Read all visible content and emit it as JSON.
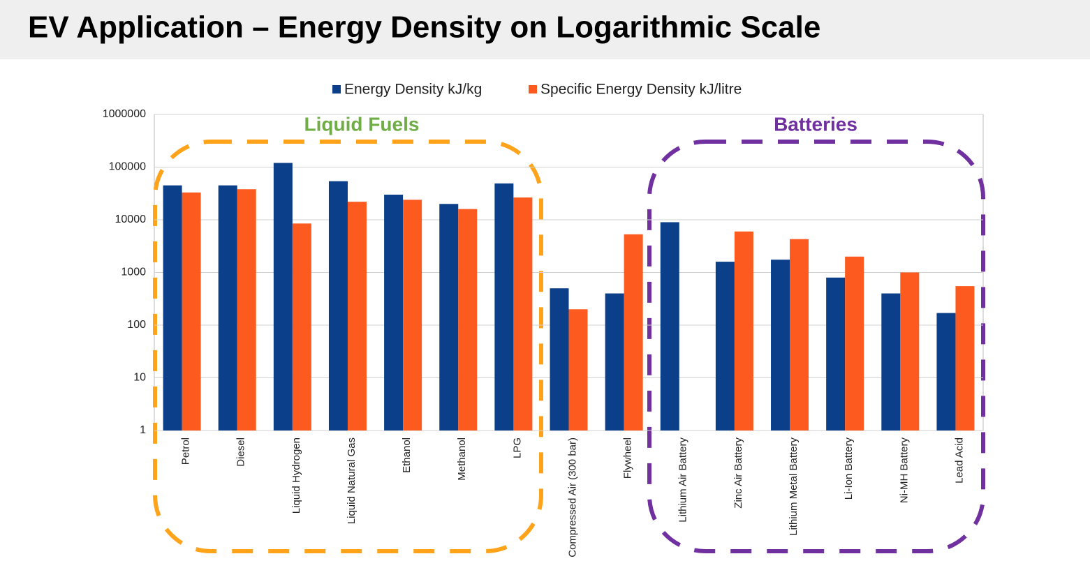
{
  "chart_data": {
    "type": "bar",
    "title": "EV Application – Energy Density on Logarithmic Scale",
    "categories": [
      "Petrol",
      "Diesel",
      "Liquid Hydrogen",
      "Liquid Natural Gas",
      "Ethanol",
      "Methanol",
      "LPG",
      "Compressed Air (300 bar)",
      "Flywheel",
      "Lithium Air Battery",
      "Zinc Air Battery",
      "Lithium Metal Battery",
      "Li-Ion Battery",
      "Ni-MH Battery",
      "Lead Acid"
    ],
    "series": [
      {
        "name": "Energy Density kJ/kg",
        "color": "#0b3f8a",
        "values": [
          45000,
          45000,
          120000,
          54000,
          30000,
          20000,
          49000,
          500,
          400,
          9000,
          1600,
          1750,
          800,
          400,
          170
        ]
      },
      {
        "name": "Specific Energy Density kJ/litre",
        "color": "#fc5a1e",
        "values": [
          33000,
          38000,
          8500,
          22000,
          24000,
          16000,
          26500,
          200,
          5300,
          null,
          6000,
          4300,
          2000,
          1000,
          550
        ]
      }
    ],
    "log_scale": true,
    "ylim": [
      1,
      1000000
    ],
    "yticks": [
      1,
      10,
      100,
      1000,
      10000,
      100000,
      1000000
    ],
    "grid": true,
    "legend": "top",
    "annotations": [
      {
        "text": "Liquid Fuels",
        "color": "#70ad47"
      },
      {
        "text": "Batteries",
        "color": "#7030a0"
      }
    ]
  }
}
